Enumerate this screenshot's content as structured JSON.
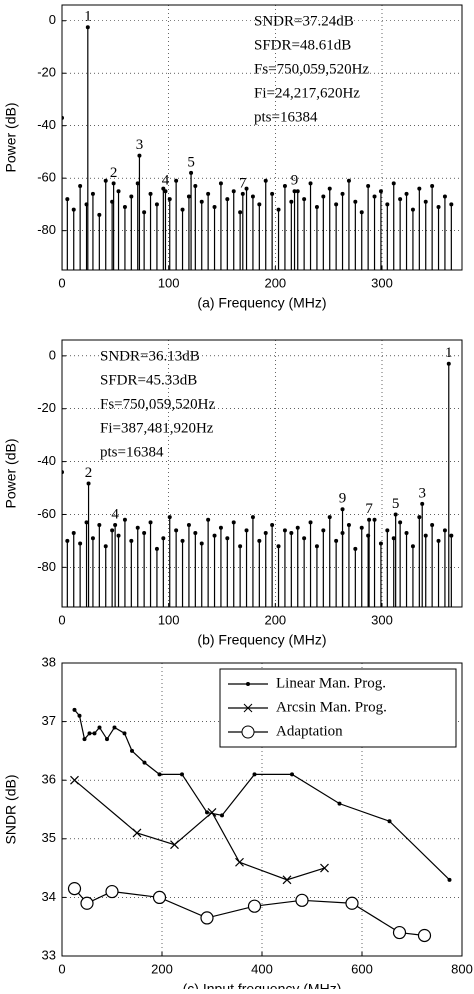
{
  "chart_data": [
    {
      "type": "stem",
      "xlabel": "(a) Frequency (MHz)",
      "ylabel": "Power (dB)",
      "xlim": [
        0,
        375
      ],
      "ylim": [
        -95,
        6
      ],
      "xticks": [
        0,
        100,
        200,
        300
      ],
      "yticks": [
        -80,
        -60,
        -40,
        -20,
        0
      ],
      "grid": true,
      "color": "#000000",
      "annotations": [
        "SNDR=37.24dB",
        "SFDR=48.61dB",
        "Fs=750,059,520Hz",
        "Fi=24,217,620Hz",
        "pts=16384"
      ],
      "annotation_corner": "right",
      "peaks": {
        "labels": [
          "1",
          "2",
          "3",
          "4",
          "5",
          "7",
          "9"
        ],
        "x": [
          24.2,
          48.4,
          72.6,
          97,
          121,
          169.5,
          218
        ],
        "values": [
          -2.5,
          -62,
          -51.4,
          -65,
          -58,
          -66,
          -65
        ]
      },
      "dc": {
        "x": [
          0
        ],
        "values": [
          -37
        ]
      },
      "stems": {
        "x": [
          5,
          11,
          17,
          23,
          29,
          35,
          41,
          47,
          53,
          59,
          65,
          71,
          77,
          83,
          89,
          95,
          101,
          107,
          113,
          119,
          125,
          131,
          137,
          143,
          149,
          155,
          161,
          167,
          173,
          179,
          185,
          191,
          197,
          203,
          209,
          215,
          221,
          227,
          233,
          239,
          245,
          251,
          257,
          263,
          269,
          275,
          281,
          287,
          293,
          299,
          305,
          311,
          317,
          323,
          329,
          335,
          341,
          347,
          353,
          359,
          365
        ],
        "values": [
          -68,
          -72,
          -63,
          -70,
          -66,
          -74,
          -61,
          -69,
          -65,
          -71,
          -67,
          -62,
          -73,
          -66,
          -70,
          -64,
          -68,
          -61,
          -72,
          -67,
          -63,
          -69,
          -66,
          -71,
          -62,
          -68,
          -65,
          -73,
          -64,
          -67,
          -70,
          -61,
          -66,
          -72,
          -63,
          -69,
          -65,
          -68,
          -62,
          -71,
          -67,
          -64,
          -70,
          -66,
          -61,
          -69,
          -73,
          -63,
          -67,
          -65,
          -70,
          -62,
          -68,
          -66,
          -72,
          -64,
          -69,
          -63,
          -71,
          -67,
          -70
        ]
      }
    },
    {
      "type": "stem",
      "xlabel": "(b) Frequency (MHz)",
      "ylabel": "Power (dB)",
      "xlim": [
        0,
        375
      ],
      "ylim": [
        -95,
        6
      ],
      "xticks": [
        0,
        100,
        200,
        300
      ],
      "yticks": [
        -80,
        -60,
        -40,
        -20,
        0
      ],
      "grid": true,
      "color": "#000000",
      "annotations": [
        "SNDR=36.13dB",
        "SFDR=45.33dB",
        "Fs=750,059,520Hz",
        "Fi=387,481,920Hz",
        "pts=16384"
      ],
      "annotation_corner": "left",
      "peaks": {
        "labels": [
          "1",
          "2",
          "4",
          "9",
          "7",
          "5",
          "3"
        ],
        "x": [
          362.6,
          24.9,
          49.8,
          263,
          287.9,
          312.8,
          337.7
        ],
        "values": [
          -3,
          -48.3,
          -64,
          -58,
          -62,
          -60,
          -56
        ]
      },
      "dc": {
        "x": [
          0
        ],
        "values": [
          -44
        ]
      },
      "stems": {
        "x": [
          5,
          11,
          17,
          23,
          29,
          35,
          41,
          47,
          53,
          59,
          65,
          71,
          77,
          83,
          89,
          95,
          101,
          107,
          113,
          119,
          125,
          131,
          137,
          143,
          149,
          155,
          161,
          167,
          173,
          179,
          185,
          191,
          197,
          203,
          209,
          215,
          221,
          227,
          233,
          239,
          245,
          251,
          257,
          263,
          269,
          275,
          281,
          287,
          293,
          299,
          305,
          311,
          317,
          323,
          329,
          335,
          341,
          347,
          353,
          359,
          365
        ],
        "values": [
          -70,
          -67,
          -71,
          -63,
          -69,
          -64,
          -72,
          -66,
          -68,
          -62,
          -70,
          -65,
          -67,
          -63,
          -73,
          -69,
          -61,
          -66,
          -70,
          -64,
          -67,
          -71,
          -62,
          -68,
          -65,
          -69,
          -63,
          -72,
          -66,
          -61,
          -70,
          -67,
          -64,
          -72,
          -66,
          -67,
          -65,
          -69,
          -63,
          -72,
          -66,
          -61,
          -70,
          -67,
          -64,
          -73,
          -65,
          -68,
          -62,
          -71,
          -66,
          -69,
          -63,
          -67,
          -72,
          -61,
          -68,
          -64,
          -70,
          -66,
          -68
        ]
      }
    },
    {
      "type": "line",
      "xlabel": "(c) Input frequency (MHz)",
      "ylabel": "SNDR (dB)",
      "xlim": [
        0,
        800
      ],
      "ylim": [
        33,
        38
      ],
      "xticks": [
        0,
        200,
        400,
        600,
        800
      ],
      "yticks": [
        33,
        34,
        35,
        36,
        37,
        38
      ],
      "grid": true,
      "legend": "upper right",
      "series": [
        {
          "name": "Linear Man. Prog.",
          "color": "#000000",
          "marker": "dot",
          "x": [
            25,
            35,
            45,
            55,
            65,
            75,
            90,
            105,
            125,
            140,
            165,
            195,
            240,
            290,
            320,
            385,
            460,
            555,
            655,
            775
          ],
          "values": [
            37.2,
            37.1,
            36.7,
            36.8,
            36.8,
            36.9,
            36.7,
            36.9,
            36.8,
            36.5,
            36.3,
            36.1,
            36.1,
            35.45,
            35.4,
            36.1,
            36.1,
            35.6,
            35.3,
            34.3
          ]
        },
        {
          "name": "Arcsin Man. Prog.",
          "color": "#000000",
          "marker": "x",
          "x": [
            25,
            150,
            225,
            300,
            355,
            450,
            525
          ],
          "values": [
            36.0,
            35.1,
            34.9,
            35.45,
            34.6,
            34.3,
            34.5
          ]
        },
        {
          "name": "Adaptation",
          "color": "#000000",
          "marker": "circle",
          "x": [
            25,
            50,
            100,
            195,
            290,
            385,
            480,
            580,
            675,
            725
          ],
          "values": [
            34.15,
            33.9,
            34.1,
            34.0,
            33.65,
            33.85,
            33.95,
            33.9,
            33.4,
            33.35
          ]
        }
      ]
    }
  ]
}
